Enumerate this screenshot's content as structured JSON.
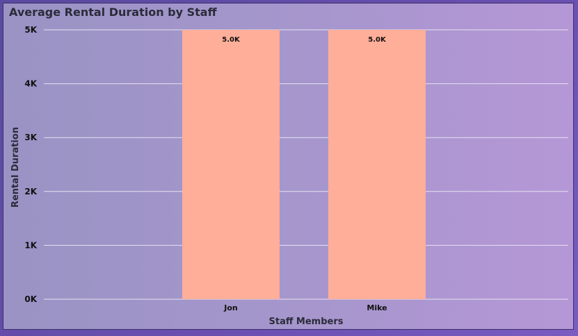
{
  "chart_data": {
    "type": "bar",
    "title": "Average Rental Duration by Staff",
    "categories": [
      "Jon",
      "Mike"
    ],
    "values": [
      5000,
      5000
    ],
    "data_labels": [
      "5.0K",
      "5.0K"
    ],
    "xlabel": "Staff Members",
    "ylabel": "Rental Duration",
    "ylim": [
      0,
      5000
    ],
    "yticks": [
      0,
      1000,
      2000,
      3000,
      4000,
      5000
    ],
    "ytick_labels": [
      "0K",
      "1K",
      "2K",
      "3K",
      "4K",
      "5K"
    ],
    "grid": true,
    "bar_color": "#ffae99",
    "grid_color": "#e6e3f2"
  }
}
